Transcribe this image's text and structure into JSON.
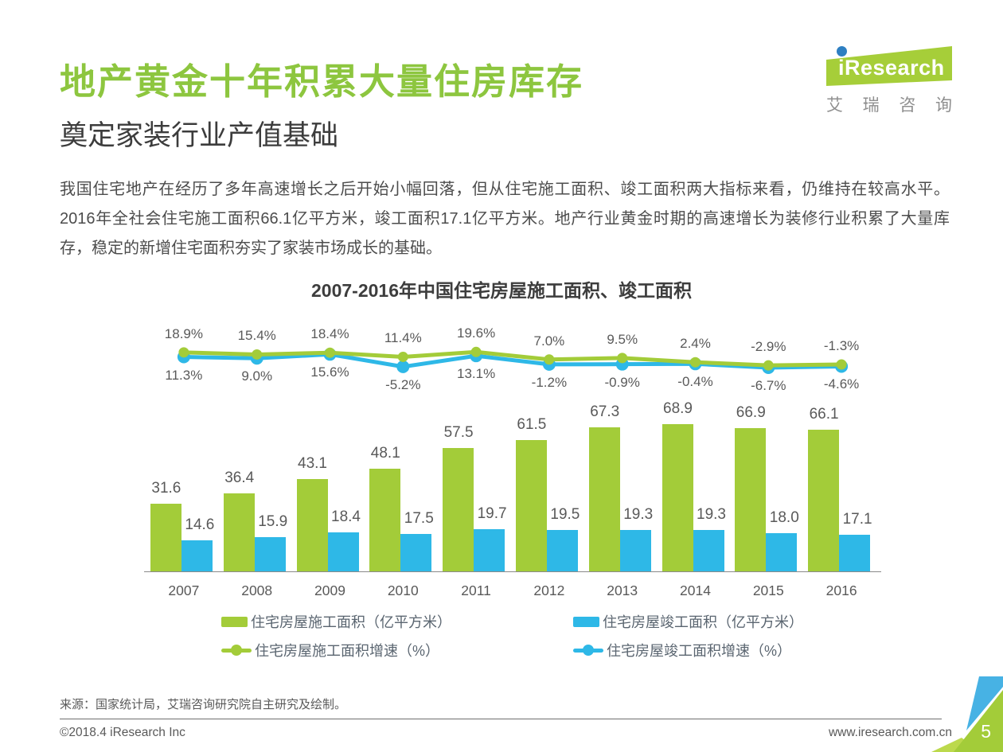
{
  "header": {
    "title": "地产黄金十年积累大量住房库存",
    "subtitle": "奠定家装行业产值基础",
    "logo": {
      "brand": "iResearch",
      "brand_cn": "艾瑞咨询"
    }
  },
  "intro": {
    "paragraph": "我国住宅地产在经历了多年高速增长之后开始小幅回落，但从住宅施工面积、竣工面积两大指标来看，仍维持在较高水平。2016年全社会住宅施工面积66.1亿平方米，竣工面积17.1亿平方米。地产行业黄金时期的高速增长为装修行业积累了大量库存，稳定的新增住宅面积夯实了家装市场成长的基础。",
    "highlight_construction": "66.1亿平方米",
    "highlight_completion": "17.1亿平方米"
  },
  "chart_data": {
    "type": "bar",
    "subtype": "grouped bars with two growth-rate line overlays",
    "title": "2007-2016年中国住宅房屋施工面积、竣工面积",
    "categories": [
      "2007",
      "2008",
      "2009",
      "2010",
      "2011",
      "2012",
      "2013",
      "2014",
      "2015",
      "2016"
    ],
    "xlabel": "",
    "ylabel": "",
    "grid": false,
    "legend_position": "bottom",
    "bar_ylim": [
      0,
      70
    ],
    "line_unit": "%",
    "bar_unit": "亿平方米",
    "series": [
      {
        "name": "住宅房屋施工面积（亿平方米）",
        "kind": "bar",
        "color": "#a3cc39",
        "values": [
          31.6,
          36.4,
          43.1,
          48.1,
          57.5,
          61.5,
          67.3,
          68.9,
          66.9,
          66.1
        ],
        "labels": [
          "31.6",
          "36.4",
          "43.1",
          "48.1",
          "57.5",
          "61.5",
          "67.3",
          "68.9",
          "66.9",
          "66.1"
        ]
      },
      {
        "name": "住宅房屋竣工面积（亿平方米）",
        "kind": "bar",
        "color": "#2eb8e7",
        "values": [
          14.6,
          15.9,
          18.4,
          17.5,
          19.7,
          19.5,
          19.3,
          19.3,
          18.0,
          17.1
        ],
        "labels": [
          "14.6",
          "15.9",
          "18.4",
          "17.5",
          "19.7",
          "19.5",
          "19.3",
          "19.3",
          "18.0",
          "17.1"
        ]
      },
      {
        "name": "住宅房屋施工面积增速（%）",
        "kind": "line",
        "color": "#a3cc39",
        "values": [
          18.9,
          15.4,
          18.4,
          11.4,
          19.6,
          7.0,
          9.5,
          2.4,
          -2.9,
          -1.3
        ],
        "labels": [
          "18.9%",
          "15.4%",
          "18.4%",
          "11.4%",
          "19.6%",
          "7.0%",
          "9.5%",
          "2.4%",
          "-2.9%",
          "-1.3%"
        ]
      },
      {
        "name": "住宅房屋竣工面积增速（%）",
        "kind": "line",
        "color": "#2eb8e7",
        "values": [
          11.3,
          9.0,
          15.6,
          -5.2,
          13.1,
          -1.2,
          -0.9,
          -0.4,
          -6.7,
          -4.6
        ],
        "labels": [
          "11.3%",
          "9.0%",
          "15.6%",
          "-5.2%",
          "13.1%",
          "-1.2%",
          "-0.9%",
          "-0.4%",
          "-6.7%",
          "-4.6%"
        ]
      }
    ]
  },
  "footer": {
    "source": "来源：国家统计局，艾瑞咨询研究院自主研究及绘制。",
    "copyright": "©2018.4 iResearch Inc",
    "website": "www.iresearch.com.cn",
    "page_number": "5"
  },
  "colors": {
    "brand_green": "#8dc63f",
    "logo_green": "#a6ce39",
    "logo_dot_blue": "#2e7fc2",
    "bar_green": "#a3cc39",
    "bar_blue": "#2eb8e7",
    "corner_blue": "#47b2e4",
    "corner_green_light": "#bcd94c",
    "text_dark": "#3c3c3c",
    "text_gray": "#595959"
  }
}
